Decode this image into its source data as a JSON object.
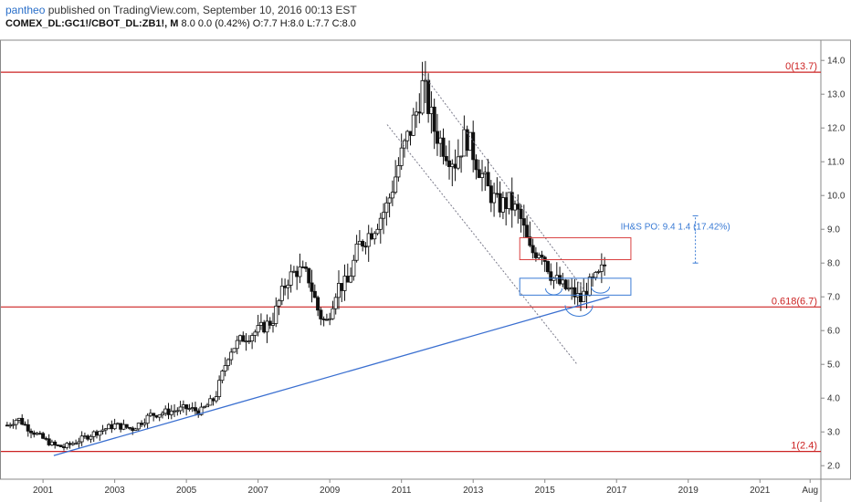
{
  "header": {
    "author": "pantheo",
    "published": " published on TradingView.com, September 10, 2016 00:13 EST",
    "symbol": "COMEX_DL:GC1!/CBOT_DL:ZB1!, M",
    "change": "8.0 0.0 (0.42%)",
    "ohlc": "O:7.7 H:8.0 L:7.7 C:8.0"
  },
  "colors": {
    "fib": "#cc2222",
    "trend": "#3a6fd0",
    "channel": "#7a7a8a",
    "box_red": "#d94040",
    "box_blue": "#3a7bd5",
    "candle": "#111111",
    "grid_frame": "#888888"
  },
  "annotations": {
    "fib_top": "0(13.7)",
    "fib_mid": "0.618(6.7)",
    "fib_bottom": "1(2.4)",
    "ihs": "IH&S PO: 9.4  1.4 (17.42%)"
  },
  "chart_data": {
    "type": "candlestick",
    "x_ticks": [
      "2001",
      "2003",
      "2005",
      "2007",
      "2009",
      "2011",
      "2013",
      "2015",
      "2017",
      "2019",
      "2021",
      "Aug"
    ],
    "y_ticks": [
      "2.0",
      "3.0",
      "4.0",
      "5.0",
      "6.0",
      "7.0",
      "8.0",
      "9.0",
      "10.0",
      "11.0",
      "12.0",
      "13.0",
      "14.0"
    ],
    "ylim": [
      1.6,
      14.6
    ],
    "xlim": [
      1999.8,
      2022.7
    ],
    "fib_levels": [
      {
        "label": "0(13.7)",
        "value": 13.65
      },
      {
        "label": "0.618(6.7)",
        "value": 6.7
      },
      {
        "label": "1(2.4)",
        "value": 2.42
      }
    ],
    "trendline": {
      "start": [
        2001.3,
        2.3
      ],
      "end": [
        2016.8,
        7.0
      ]
    },
    "channel_upper": {
      "start": [
        2011.6,
        13.6
      ],
      "end": [
        2016.1,
        7.2
      ]
    },
    "channel_lower": {
      "start": [
        2010.6,
        12.1
      ],
      "end": [
        2015.9,
        5.0
      ]
    },
    "target_box": {
      "x": [
        2014.3,
        2017.4
      ],
      "y": [
        8.1,
        8.75
      ]
    },
    "neckline_box": {
      "x": [
        2014.3,
        2017.4
      ],
      "y": [
        7.05,
        7.55
      ]
    },
    "ihs_measure": {
      "x": 2019.2,
      "y": [
        8.0,
        9.4
      ]
    },
    "price_path": [
      [
        2000.0,
        3.2
      ],
      [
        2000.3,
        3.4
      ],
      [
        2000.6,
        3.1
      ],
      [
        2001.0,
        2.8
      ],
      [
        2001.3,
        2.6
      ],
      [
        2001.6,
        2.55
      ],
      [
        2002.0,
        2.75
      ],
      [
        2002.5,
        3.0
      ],
      [
        2003.0,
        3.2
      ],
      [
        2003.5,
        3.1
      ],
      [
        2004.0,
        3.5
      ],
      [
        2004.5,
        3.6
      ],
      [
        2005.0,
        3.7
      ],
      [
        2005.4,
        3.6
      ],
      [
        2005.8,
        4.0
      ],
      [
        2006.2,
        5.4
      ],
      [
        2006.6,
        5.8
      ],
      [
        2007.0,
        6.0
      ],
      [
        2007.4,
        6.3
      ],
      [
        2007.8,
        7.5
      ],
      [
        2008.1,
        7.8
      ],
      [
        2008.4,
        7.6
      ],
      [
        2008.7,
        6.5
      ],
      [
        2008.9,
        6.2
      ],
      [
        2009.2,
        7.3
      ],
      [
        2009.5,
        7.4
      ],
      [
        2009.8,
        8.5
      ],
      [
        2010.2,
        9.0
      ],
      [
        2010.6,
        9.7
      ],
      [
        2011.0,
        11.2
      ],
      [
        2011.4,
        12.4
      ],
      [
        2011.6,
        13.3
      ],
      [
        2011.9,
        12.0
      ],
      [
        2012.2,
        11.4
      ],
      [
        2012.5,
        11.0
      ],
      [
        2012.8,
        11.8
      ],
      [
        2013.1,
        11.0
      ],
      [
        2013.4,
        10.2
      ],
      [
        2013.7,
        9.7
      ],
      [
        2014.0,
        9.8
      ],
      [
        2014.3,
        9.4
      ],
      [
        2014.6,
        8.3
      ],
      [
        2014.9,
        8.4
      ],
      [
        2015.2,
        7.6
      ],
      [
        2015.5,
        7.3
      ],
      [
        2015.8,
        7.1
      ],
      [
        2016.0,
        6.9
      ],
      [
        2016.2,
        7.3
      ],
      [
        2016.5,
        7.6
      ],
      [
        2016.7,
        8.0
      ]
    ]
  }
}
